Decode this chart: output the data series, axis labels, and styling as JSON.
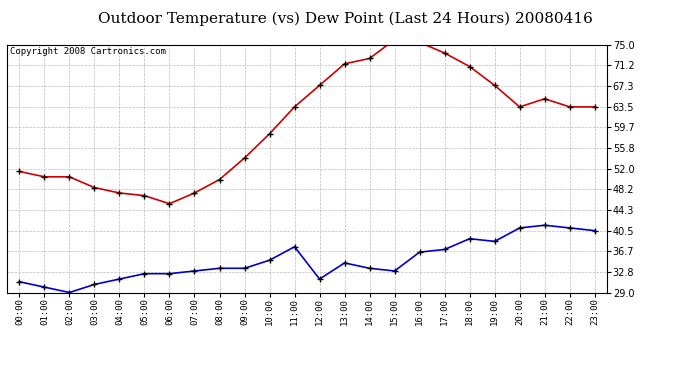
{
  "title": "Outdoor Temperature (vs) Dew Point (Last 24 Hours) 20080416",
  "copyright": "Copyright 2008 Cartronics.com",
  "hours": [
    "00:00",
    "01:00",
    "02:00",
    "03:00",
    "04:00",
    "05:00",
    "06:00",
    "07:00",
    "08:00",
    "09:00",
    "10:00",
    "11:00",
    "12:00",
    "13:00",
    "14:00",
    "15:00",
    "16:00",
    "17:00",
    "18:00",
    "19:00",
    "20:00",
    "21:00",
    "22:00",
    "23:00"
  ],
  "temp": [
    51.5,
    50.5,
    50.5,
    48.5,
    47.5,
    47.0,
    45.5,
    47.5,
    50.0,
    54.0,
    58.5,
    63.5,
    67.5,
    71.5,
    72.5,
    76.0,
    75.5,
    73.5,
    71.0,
    67.5,
    63.5,
    65.0,
    63.5,
    63.5
  ],
  "dew": [
    31.0,
    30.0,
    29.0,
    30.5,
    31.5,
    32.5,
    32.5,
    33.0,
    33.5,
    33.5,
    35.0,
    37.5,
    31.5,
    34.5,
    33.5,
    33.0,
    36.5,
    37.0,
    39.0,
    38.5,
    41.0,
    41.5,
    41.0,
    40.5
  ],
  "temp_color": "#cc0000",
  "dew_color": "#0000cc",
  "bg_color": "#ffffff",
  "grid_color": "#bbbbbb",
  "title_fontsize": 11,
  "copyright_fontsize": 6.5,
  "yticks": [
    29.0,
    32.8,
    36.7,
    40.5,
    44.3,
    48.2,
    52.0,
    55.8,
    59.7,
    63.5,
    67.3,
    71.2,
    75.0
  ],
  "ylim": [
    29.0,
    75.0
  ]
}
